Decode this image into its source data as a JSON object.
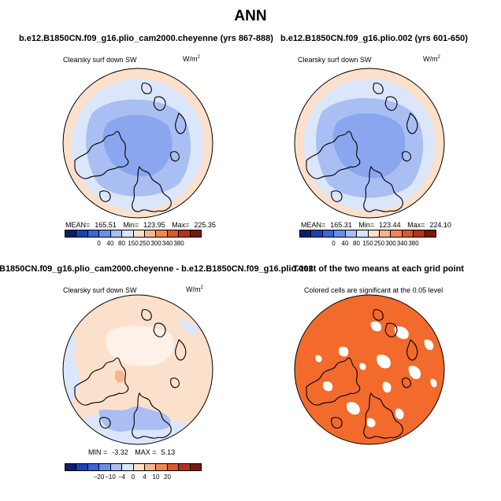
{
  "figure_title": "ANN",
  "panels": [
    {
      "title": "b.e12.B1850CN.f09_g16.plio_cam2000.cheyenne (yrs 867-888)",
      "variable": "Clearsky surf down SW",
      "units": "W/m",
      "units_exp": "2",
      "stats": {
        "mean_label": "MEAN=",
        "mean": "165.51",
        "min_label": "Min=",
        "min": "123.95",
        "max_label": "Max=",
        "max": "225.35"
      },
      "colorbar_labels": [
        "0",
        "40",
        "80",
        "150",
        "250",
        "300",
        "340",
        "380"
      ]
    },
    {
      "title": "b.e12.B1850CN.f09_g16.plio.002 (yrs 601-650)",
      "variable": "Clearsky surf down SW",
      "units": "W/m",
      "units_exp": "2",
      "stats": {
        "mean_label": "MEAN=",
        "mean": "165.31",
        "min_label": "Min=",
        "min": "123.44",
        "max_label": "Max=",
        "max": "224.10"
      },
      "colorbar_labels": [
        "0",
        "40",
        "80",
        "150",
        "250",
        "300",
        "340",
        "380"
      ]
    },
    {
      "title": "B1850CN.f09_g16.plio_cam2000.cheyenne - b.e12.B1850CN.f09_g16.plio.002",
      "variable": "Clearsky surf down SW",
      "units": "W/m",
      "units_exp": "2",
      "stats": {
        "min_label": "MIN =",
        "min": "-3.32",
        "max_label": "MAX =",
        "max": "5.13"
      },
      "colorbar_labels": [
        "−20",
        "−10",
        "−4",
        "0",
        "4",
        "10",
        "20"
      ]
    },
    {
      "title": "T-test of the two means at each grid point",
      "subtitle": "Colored cells are significant at the 0.05 level"
    }
  ],
  "colors": {
    "abs_scale": [
      "#08206b",
      "#1f3fb0",
      "#3a64d8",
      "#6a8fe8",
      "#a9bef2",
      "#dbe6fb",
      "#fbe0cc",
      "#f7b58d",
      "#ef8655",
      "#d9582c",
      "#b1341a",
      "#7a1808"
    ],
    "diff_scale": [
      "#08206b",
      "#1f3fb0",
      "#3a64d8",
      "#6a8fe8",
      "#a9bef2",
      "#dbe6fb",
      "#fbe0cc",
      "#f7b58d",
      "#ef8655",
      "#d9582c",
      "#b1341a",
      "#7a1808"
    ],
    "significance": "#f26a2c"
  }
}
